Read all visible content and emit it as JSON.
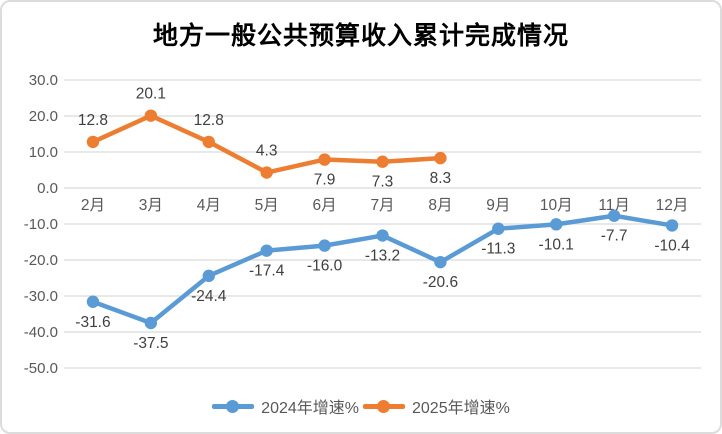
{
  "title": "地方一般公共预算收入累计完成情况",
  "chart_data": {
    "type": "line",
    "title": "地方一般公共预算收入累计完成情况",
    "categories": [
      "2月",
      "3月",
      "4月",
      "5月",
      "6月",
      "7月",
      "8月",
      "9月",
      "10月",
      "11月",
      "12月"
    ],
    "series": [
      {
        "name": "2024年增速%",
        "color": "#5B9BD5",
        "values": [
          -31.6,
          -37.5,
          -24.4,
          -17.4,
          -16.0,
          -13.2,
          -20.6,
          -11.3,
          -10.1,
          -7.7,
          -10.4
        ],
        "label_positions": [
          "below",
          "below",
          "below",
          "below",
          "below",
          "below",
          "below",
          "below",
          "below",
          "below",
          "below"
        ]
      },
      {
        "name": "2025年增速%",
        "color": "#ED7D31",
        "values": [
          12.8,
          20.1,
          12.8,
          4.3,
          7.9,
          7.3,
          8.3,
          null,
          null,
          null,
          null
        ],
        "label_positions": [
          "above",
          "above",
          "above",
          "above",
          "below",
          "below",
          "below"
        ]
      }
    ],
    "ylim": [
      -50,
      30
    ],
    "y_ticks": [
      30.0,
      20.0,
      10.0,
      0.0,
      -10.0,
      -20.0,
      -30.0,
      -40.0,
      -50.0
    ],
    "grid": true,
    "legend_position": "bottom",
    "xlabel": "",
    "ylabel": ""
  },
  "colors": {
    "series_2024": "#5B9BD5",
    "series_2025": "#ED7D31",
    "gridline": "#D9D9D9",
    "axis_text": "#595959",
    "data_label_text": "#404040",
    "title_text": "#000000",
    "frame_border": "#DCDCDC"
  }
}
